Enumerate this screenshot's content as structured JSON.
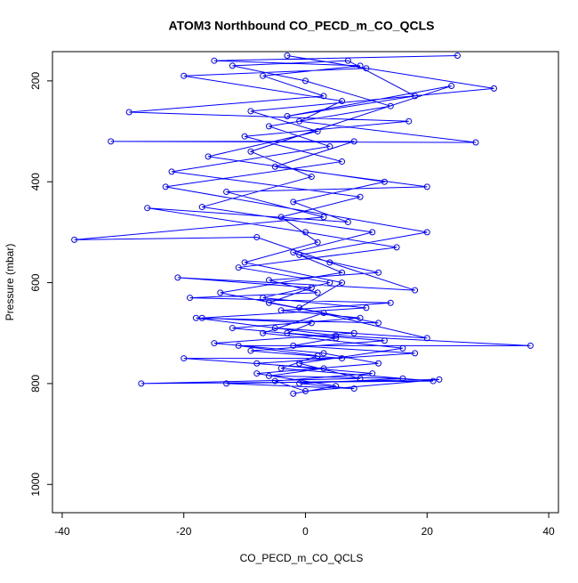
{
  "chart_data": {
    "type": "line",
    "markers": true,
    "title": "ATOM3 Northbound CO_PECD_m_CO_QCLS",
    "xlabel": "CO_PECD_m_CO_QCLS",
    "ylabel": "Pressure (mbar)",
    "color": "#0000ff",
    "x": [
      -2,
      5,
      -8,
      12,
      3,
      -15,
      8,
      -5,
      20,
      -1,
      6,
      -10,
      2,
      -4,
      9,
      -22,
      4,
      -6,
      14,
      0,
      -12,
      7,
      18,
      -3,
      24,
      -9,
      1,
      -17,
      11,
      -2,
      6,
      -14,
      3,
      -7,
      16,
      -1,
      9,
      -27,
      21,
      -4,
      2,
      -11,
      37,
      5,
      -18,
      12,
      -6,
      1,
      -21,
      18,
      4,
      -8,
      -38,
      3,
      -13,
      20,
      -5,
      8,
      -32,
      28,
      -1,
      6,
      -20,
      10,
      -3,
      31,
      -9,
      2,
      -16,
      13,
      -2,
      7,
      -26,
      0,
      15,
      -11,
      4,
      -7,
      10,
      -17,
      1,
      -3,
      13,
      -9,
      6,
      -20,
      3,
      -6,
      16,
      -1,
      8,
      -13,
      22,
      0,
      -5,
      11,
      -8,
      18,
      -2,
      5,
      -12,
      9,
      -4,
      14,
      -19,
      2,
      -6,
      12,
      -1,
      20,
      -23,
      6,
      -10,
      17,
      -29,
      3,
      -7,
      9,
      -15,
      25
    ],
    "values": [
      820,
      805,
      780,
      760,
      740,
      720,
      700,
      690,
      710,
      650,
      600,
      560,
      520,
      470,
      430,
      380,
      330,
      290,
      250,
      200,
      170,
      160,
      230,
      270,
      210,
      340,
      390,
      450,
      500,
      540,
      580,
      620,
      660,
      700,
      730,
      760,
      790,
      800,
      795,
      770,
      745,
      725,
      725,
      705,
      670,
      680,
      640,
      610,
      590,
      615,
      560,
      510,
      515,
      470,
      420,
      410,
      370,
      320,
      320,
      322,
      280,
      240,
      190,
      175,
      150,
      215,
      260,
      300,
      350,
      400,
      440,
      480,
      452,
      500,
      530,
      570,
      600,
      630,
      650,
      670,
      680,
      700,
      715,
      735,
      750,
      750,
      770,
      785,
      790,
      800,
      810,
      800,
      792,
      815,
      795,
      780,
      760,
      740,
      725,
      710,
      690,
      670,
      655,
      640,
      630,
      620,
      595,
      580,
      545,
      500,
      410,
      360,
      310,
      280,
      262,
      230,
      190,
      170,
      160,
      150
    ],
    "xlim": [
      -41.6,
      41.6
    ],
    "xticks": [
      -40,
      -20,
      0,
      20,
      40
    ],
    "ylim": [
      142,
      1056
    ],
    "y_reversed": true,
    "yticks": [
      200,
      400,
      600,
      800,
      1000
    ]
  }
}
